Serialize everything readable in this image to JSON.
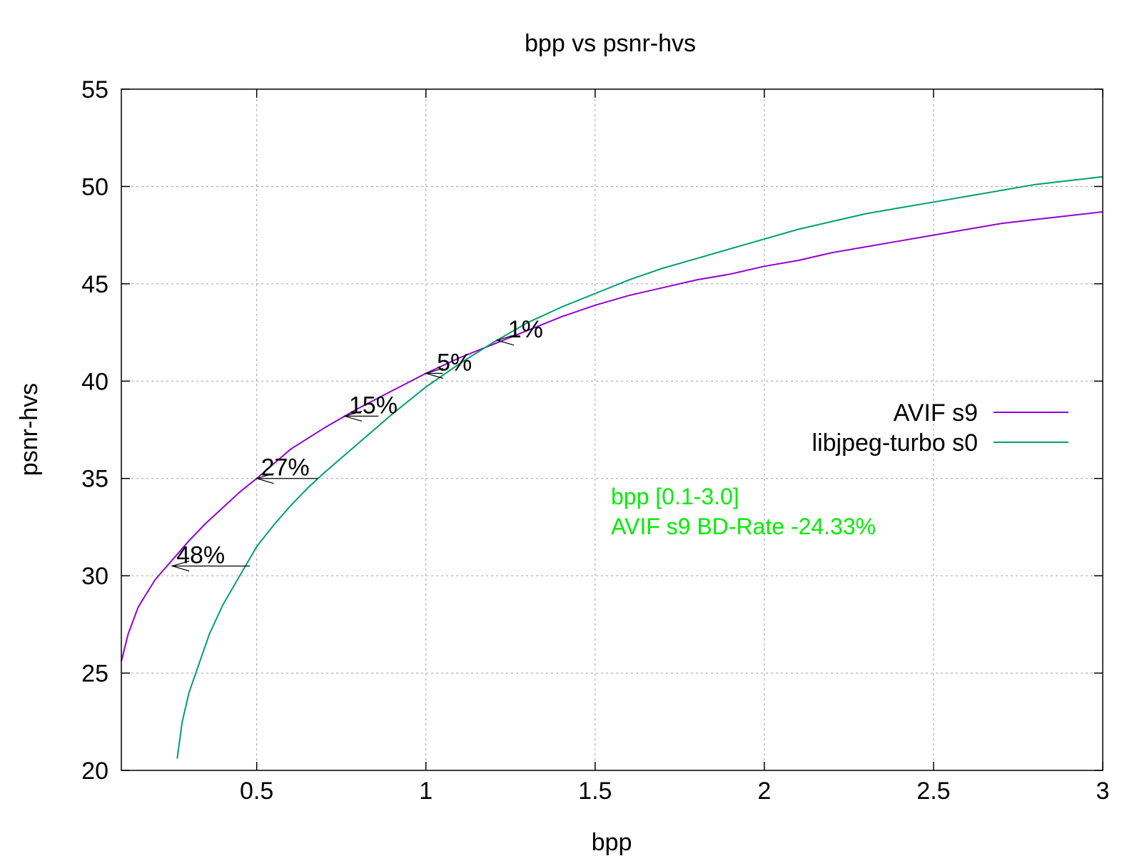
{
  "chart_data": {
    "type": "line",
    "title": "bpp vs psnr-hvs",
    "xlabel": "bpp",
    "ylabel": "psnr-hvs",
    "xlim": [
      0.1,
      3.0
    ],
    "ylim": [
      20,
      55
    ],
    "x_ticks": [
      0.5,
      1,
      1.5,
      2,
      2.5,
      3
    ],
    "x_tick_labels": [
      "0.5",
      "1",
      "1.5",
      "2",
      "2.5",
      "3"
    ],
    "y_ticks": [
      20,
      25,
      30,
      35,
      40,
      45,
      50,
      55
    ],
    "y_tick_labels": [
      "20",
      "25",
      "30",
      "35",
      "40",
      "45",
      "50",
      "55"
    ],
    "grid": true,
    "legend_position": "right",
    "series": [
      {
        "name": "AVIF s9",
        "color": "#9400d3",
        "x": [
          0.1,
          0.12,
          0.15,
          0.2,
          0.25,
          0.3,
          0.35,
          0.4,
          0.45,
          0.5,
          0.6,
          0.7,
          0.8,
          0.9,
          1.0,
          1.1,
          1.2,
          1.3,
          1.4,
          1.5,
          1.6,
          1.7,
          1.8,
          1.9,
          2.0,
          2.1,
          2.2,
          2.3,
          2.4,
          2.5,
          2.6,
          2.7,
          2.8,
          2.9,
          3.0
        ],
        "y": [
          25.6,
          27.0,
          28.4,
          29.8,
          30.8,
          31.8,
          32.7,
          33.5,
          34.3,
          35.0,
          36.5,
          37.6,
          38.6,
          39.5,
          40.4,
          41.2,
          41.9,
          42.6,
          43.3,
          43.9,
          44.4,
          44.8,
          45.2,
          45.5,
          45.9,
          46.2,
          46.6,
          46.9,
          47.2,
          47.5,
          47.8,
          48.1,
          48.3,
          48.5,
          48.7
        ]
      },
      {
        "name": "libjpeg-turbo s0",
        "color": "#009e73",
        "x": [
          0.265,
          0.28,
          0.3,
          0.33,
          0.36,
          0.4,
          0.45,
          0.5,
          0.55,
          0.6,
          0.65,
          0.7,
          0.8,
          0.9,
          1.0,
          1.1,
          1.2,
          1.3,
          1.4,
          1.5,
          1.6,
          1.7,
          1.8,
          1.9,
          2.0,
          2.1,
          2.2,
          2.3,
          2.4,
          2.5,
          2.6,
          2.7,
          2.8,
          2.9,
          3.0
        ],
        "y": [
          20.6,
          22.5,
          24.0,
          25.5,
          27.0,
          28.5,
          30.0,
          31.5,
          32.6,
          33.6,
          34.5,
          35.3,
          36.8,
          38.3,
          39.7,
          40.9,
          42.0,
          43.0,
          43.8,
          44.5,
          45.2,
          45.8,
          46.3,
          46.8,
          47.3,
          47.8,
          48.2,
          48.6,
          48.9,
          49.2,
          49.5,
          49.8,
          50.1,
          50.3,
          50.5
        ]
      }
    ],
    "annotations": [
      {
        "label": "48%",
        "from_x": 0.48,
        "to_x": 0.25,
        "y": 30.5
      },
      {
        "label": "27%",
        "from_x": 0.68,
        "to_x": 0.5,
        "y": 35.0
      },
      {
        "label": "15%",
        "from_x": 0.86,
        "to_x": 0.76,
        "y": 38.2
      },
      {
        "label": "5%",
        "from_x": 1.05,
        "to_x": 1.0,
        "y": 40.4
      },
      {
        "label": "1%",
        "from_x": 1.22,
        "to_x": 1.21,
        "y": 42.1
      }
    ],
    "info": {
      "color": "#00ee00",
      "lines": [
        "bpp [0.1-3.0]",
        "AVIF s9 BD-Rate -24.33%"
      ]
    }
  }
}
